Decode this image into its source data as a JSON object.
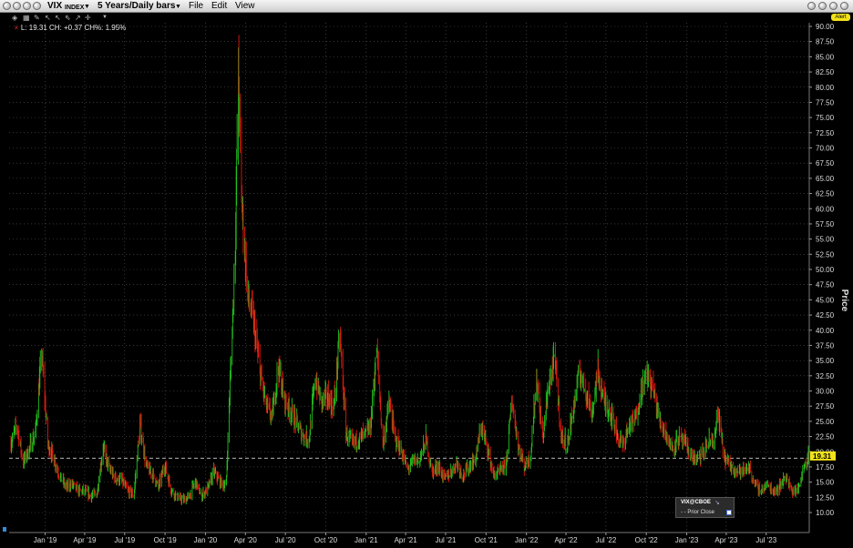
{
  "window": {
    "symbol": "VIX",
    "symbol_suffix": "INDEX",
    "timeframe": "5 Years/Daily bars",
    "menu": [
      "File",
      "Edit",
      "View"
    ],
    "alert_label": "Alert"
  },
  "legend": {
    "text": "L: 19.31 CH: +0.37 CH%: 1.95%"
  },
  "inset": {
    "title": "VIX@CBOE",
    "prior_close_label": "Prior Close",
    "prior_close_checked": true
  },
  "colors": {
    "up": "#22c11e",
    "down": "#e01a10",
    "grid": "#5a5a5a",
    "last_price_bg": "#f3e21a",
    "alert_bg": "#f3e21a"
  },
  "icons": [
    "window-buttons",
    "chart-type-icon",
    "draw-tool-icons",
    "dropdown-icon"
  ],
  "chart_data": {
    "type": "line",
    "title": "",
    "ylabel": "Price",
    "xlabel": "",
    "ylim": [
      7.5,
      90.5
    ],
    "y_ticks": [
      "90.00",
      "87.50",
      "85.00",
      "82.50",
      "80.00",
      "77.50",
      "75.00",
      "72.50",
      "70.00",
      "67.50",
      "65.00",
      "62.50",
      "60.00",
      "57.50",
      "55.00",
      "52.50",
      "50.00",
      "47.50",
      "45.00",
      "42.50",
      "40.00",
      "37.50",
      "35.00",
      "32.50",
      "30.00",
      "27.50",
      "25.00",
      "22.50",
      "20.00",
      "17.50",
      "15.00",
      "12.50",
      "10.00"
    ],
    "x_ticks": [
      "Jan '19",
      "Apr '19",
      "Jul '19",
      "Oct '19",
      "Jan '20",
      "Apr '20",
      "Jul '20",
      "Oct '20",
      "Jan '21",
      "Apr '21",
      "Jul '21",
      "Oct '21",
      "Jan '22",
      "Apr '22",
      "Jul '22",
      "Oct '22",
      "Jan '23",
      "Apr '23",
      "Jul '23"
    ],
    "last_price": "19.31",
    "prior_close_line": 18.94,
    "series": [
      {
        "values": [
          [
            "2018-10-15",
            21.3
          ],
          [
            "2018-10-29",
            24.2
          ],
          [
            "2018-11-12",
            18.1
          ],
          [
            "2018-11-26",
            20.5
          ],
          [
            "2018-12-10",
            23.0
          ],
          [
            "2018-12-24",
            36.1
          ],
          [
            "2019-01-07",
            21.2
          ],
          [
            "2019-01-21",
            18.6
          ],
          [
            "2019-02-04",
            15.9
          ],
          [
            "2019-02-18",
            14.0
          ],
          [
            "2019-03-04",
            14.6
          ],
          [
            "2019-03-18",
            13.5
          ],
          [
            "2019-04-01",
            13.4
          ],
          [
            "2019-04-15",
            12.6
          ],
          [
            "2019-04-29",
            13.1
          ],
          [
            "2019-05-13",
            20.6
          ],
          [
            "2019-05-27",
            17.0
          ],
          [
            "2019-06-10",
            15.5
          ],
          [
            "2019-06-24",
            15.2
          ],
          [
            "2019-07-08",
            13.5
          ],
          [
            "2019-07-22",
            12.8
          ],
          [
            "2019-08-05",
            24.5
          ],
          [
            "2019-08-19",
            17.5
          ],
          [
            "2019-09-02",
            16.3
          ],
          [
            "2019-09-16",
            14.0
          ],
          [
            "2019-09-30",
            17.8
          ],
          [
            "2019-10-14",
            13.8
          ],
          [
            "2019-10-28",
            12.5
          ],
          [
            "2019-11-11",
            12.0
          ],
          [
            "2019-11-25",
            12.5
          ],
          [
            "2019-12-09",
            15.0
          ],
          [
            "2019-12-23",
            12.6
          ],
          [
            "2020-01-06",
            13.8
          ],
          [
            "2020-01-20",
            16.5
          ],
          [
            "2020-02-03",
            15.0
          ],
          [
            "2020-02-17",
            14.2
          ],
          [
            "2020-02-24",
            27.5
          ],
          [
            "2020-03-02",
            40.0
          ],
          [
            "2020-03-09",
            54.5
          ],
          [
            "2020-03-16",
            82.7
          ],
          [
            "2020-03-23",
            61.5
          ],
          [
            "2020-04-06",
            45.5
          ],
          [
            "2020-04-20",
            41.0
          ],
          [
            "2020-05-04",
            33.0
          ],
          [
            "2020-05-18",
            27.6
          ],
          [
            "2020-06-01",
            25.5
          ],
          [
            "2020-06-15",
            34.0
          ],
          [
            "2020-06-29",
            28.5
          ],
          [
            "2020-07-13",
            26.5
          ],
          [
            "2020-07-27",
            24.5
          ],
          [
            "2020-08-10",
            22.5
          ],
          [
            "2020-08-24",
            22.0
          ],
          [
            "2020-09-07",
            32.0
          ],
          [
            "2020-09-21",
            28.0
          ],
          [
            "2020-10-05",
            29.0
          ],
          [
            "2020-10-19",
            27.0
          ],
          [
            "2020-11-02",
            39.0
          ],
          [
            "2020-11-16",
            23.0
          ],
          [
            "2020-11-30",
            21.0
          ],
          [
            "2020-12-14",
            22.0
          ],
          [
            "2020-12-28",
            22.5
          ],
          [
            "2021-01-11",
            24.0
          ],
          [
            "2021-01-25",
            37.0
          ],
          [
            "2021-02-08",
            21.0
          ],
          [
            "2021-02-22",
            28.0
          ],
          [
            "2021-03-08",
            22.0
          ],
          [
            "2021-03-22",
            20.0
          ],
          [
            "2021-04-05",
            17.0
          ],
          [
            "2021-04-19",
            18.5
          ],
          [
            "2021-05-03",
            18.5
          ],
          [
            "2021-05-17",
            22.0
          ],
          [
            "2021-05-31",
            16.5
          ],
          [
            "2021-06-14",
            17.5
          ],
          [
            "2021-06-28",
            15.5
          ],
          [
            "2021-07-12",
            16.5
          ],
          [
            "2021-07-26",
            18.0
          ],
          [
            "2021-08-09",
            16.0
          ],
          [
            "2021-08-23",
            17.5
          ],
          [
            "2021-09-06",
            18.5
          ],
          [
            "2021-09-20",
            24.0
          ],
          [
            "2021-10-04",
            20.5
          ],
          [
            "2021-10-18",
            16.0
          ],
          [
            "2021-11-01",
            16.5
          ],
          [
            "2021-11-15",
            17.5
          ],
          [
            "2021-11-29",
            28.5
          ],
          [
            "2021-12-13",
            21.0
          ],
          [
            "2021-12-27",
            17.5
          ],
          [
            "2022-01-10",
            19.0
          ],
          [
            "2022-01-24",
            32.0
          ],
          [
            "2022-02-07",
            22.0
          ],
          [
            "2022-02-21",
            31.0
          ],
          [
            "2022-03-07",
            35.0
          ],
          [
            "2022-03-21",
            22.5
          ],
          [
            "2022-04-04",
            21.0
          ],
          [
            "2022-04-18",
            27.0
          ],
          [
            "2022-05-02",
            33.0
          ],
          [
            "2022-05-16",
            30.0
          ],
          [
            "2022-05-30",
            26.0
          ],
          [
            "2022-06-13",
            33.0
          ],
          [
            "2022-06-27",
            28.0
          ],
          [
            "2022-07-11",
            26.5
          ],
          [
            "2022-07-25",
            23.0
          ],
          [
            "2022-08-08",
            21.0
          ],
          [
            "2022-08-22",
            24.0
          ],
          [
            "2022-09-05",
            25.0
          ],
          [
            "2022-09-19",
            30.0
          ],
          [
            "2022-10-03",
            32.5
          ],
          [
            "2022-10-17",
            30.0
          ],
          [
            "2022-10-31",
            25.0
          ],
          [
            "2022-11-14",
            23.0
          ],
          [
            "2022-11-28",
            20.5
          ],
          [
            "2022-12-12",
            22.0
          ],
          [
            "2022-12-26",
            21.5
          ],
          [
            "2023-01-09",
            19.5
          ],
          [
            "2023-01-23",
            18.5
          ],
          [
            "2023-02-06",
            19.5
          ],
          [
            "2023-02-20",
            21.5
          ],
          [
            "2023-03-06",
            22.0
          ],
          [
            "2023-03-13",
            26.5
          ],
          [
            "2023-03-27",
            19.0
          ],
          [
            "2023-04-10",
            17.5
          ],
          [
            "2023-04-24",
            17.0
          ],
          [
            "2023-05-08",
            16.5
          ],
          [
            "2023-05-22",
            17.5
          ],
          [
            "2023-06-05",
            14.5
          ],
          [
            "2023-06-19",
            13.5
          ],
          [
            "2023-07-03",
            14.5
          ],
          [
            "2023-07-17",
            13.5
          ],
          [
            "2023-07-31",
            14.0
          ],
          [
            "2023-08-14",
            16.0
          ],
          [
            "2023-08-28",
            13.5
          ],
          [
            "2023-09-11",
            13.5
          ],
          [
            "2023-09-25",
            17.5
          ],
          [
            "2023-10-05",
            19.3
          ]
        ]
      }
    ],
    "grid": true,
    "legend_position": "bottom-right"
  }
}
